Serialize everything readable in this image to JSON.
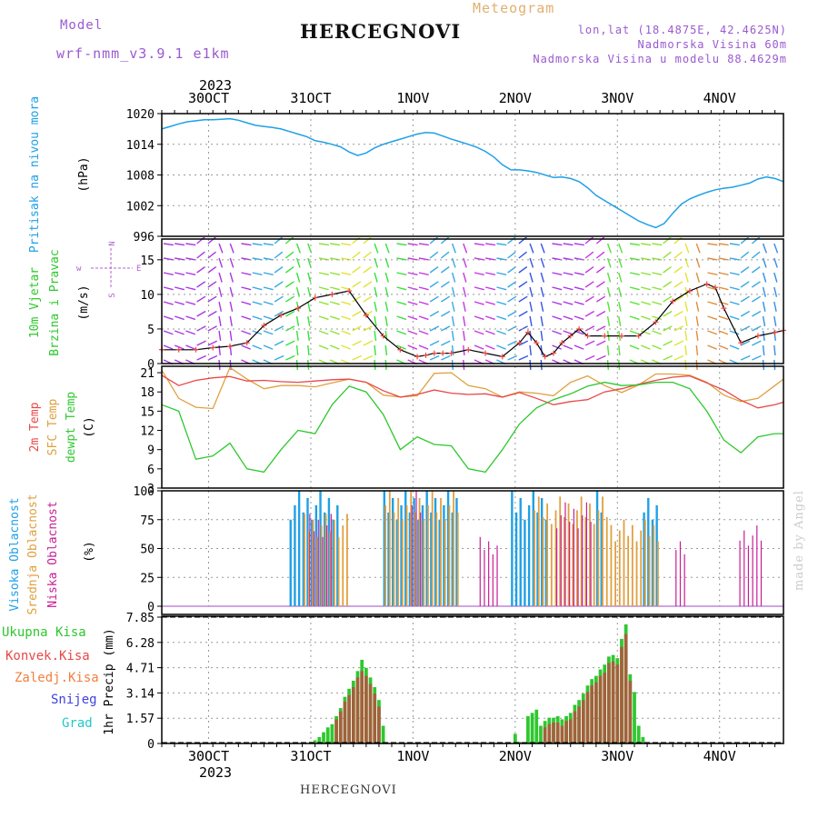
{
  "header": {
    "model_label": "Model",
    "model_name": "wrf-nmm_v3.9.1  e1km",
    "station_title": "HERCEGNOVI",
    "meteogram_label": "Meteogram",
    "lonlat": "lon,lat (18.4875E, 42.4625N)",
    "elevation": "Nadmorska Visina 60m",
    "model_elevation": "Nadmorska Visina u modelu 88.4629m"
  },
  "footer": {
    "station": "HERCEGNOVI",
    "credit": "made by Angel"
  },
  "time_axis": {
    "year": "2023",
    "days": [
      "30OCT",
      "31OCT",
      "1NOV",
      "2NOV",
      "3NOV",
      "4NOV"
    ],
    "start_hours_before_30oct": 11,
    "total_hours": 146
  },
  "colors": {
    "pressure": "#1fa0e6",
    "temp2m": "#e84848",
    "sfc_temp": "#e0a040",
    "dewpt": "#2ec82e",
    "high_cloud": "#1fa0e6",
    "mid_cloud": "#e0a040",
    "low_cloud": "#c81e96",
    "total_precip": "#2ec82e",
    "conv_precip": "#c84040",
    "frozen": "#f08040",
    "snow": "#4040e0",
    "grad": "#20c8c8",
    "wind_speed": "#e84848"
  },
  "panels": {
    "pressure": {
      "ylabel": "Pritisak na nivou mora",
      "unit": "(hPa)",
      "ticks": [
        "1020",
        "1014",
        "1008",
        "1002",
        "996"
      ]
    },
    "wind": {
      "ylabel1": "10m Vjetar",
      "ylabel2": "Brzina i Pravac",
      "unit": "(m/s)",
      "ticks": [
        "15",
        "10",
        "5",
        "0"
      ],
      "compass": {
        "n": "N",
        "w": "W",
        "e": "E",
        "s": "S",
        "wsym": "w",
        "esym": "E"
      }
    },
    "temp": {
      "ylabel1": "2m Temp",
      "ylabel2": "SFC Temp",
      "ylabel3": "dewpt Temp",
      "unit": "(C)",
      "ticks": [
        "21",
        "18",
        "15",
        "12",
        "9",
        "6",
        "3"
      ]
    },
    "cloud": {
      "ylabel1": "Visoka Oblacnost",
      "ylabel2": "Srednja Oblacnost",
      "ylabel3": "Niska Oblacnost",
      "unit": "(%)",
      "ticks": [
        "100",
        "75",
        "50",
        "25",
        "0"
      ]
    },
    "precip": {
      "legend": [
        "Ukupna Kisa",
        "Konvek.Kisa",
        "Zaledj.Kisa",
        "Snijeg",
        "Grad"
      ],
      "ylabel": "1hr Precip (mm)",
      "ticks": [
        "7.85",
        "6.28",
        "4.71",
        "3.14",
        "1.57",
        "0"
      ]
    }
  },
  "chart_data": [
    {
      "type": "line",
      "title": "Pritisak na nivou mora",
      "unit": "hPa",
      "x_hours": [
        0,
        2,
        4,
        6,
        8,
        10,
        12,
        14,
        16,
        18,
        20,
        22,
        24,
        26,
        28,
        30,
        32,
        34,
        36,
        38,
        40,
        42,
        44,
        46,
        48,
        50,
        52,
        54,
        56,
        58,
        60,
        62,
        64,
        66,
        68,
        70,
        72,
        74,
        76,
        78,
        80,
        82,
        84,
        86,
        88,
        90,
        92,
        94,
        96,
        98,
        100,
        102,
        104,
        106,
        108,
        110,
        112,
        114,
        116,
        118,
        120,
        122,
        124,
        126,
        128,
        130,
        132,
        134,
        136,
        138,
        140,
        142,
        144,
        146
      ],
      "values": [
        1017,
        1017.5,
        1018,
        1018.4,
        1018.6,
        1018.8,
        1018.8,
        1018.9,
        1019,
        1018.7,
        1018.2,
        1017.7,
        1017.5,
        1017.3,
        1017,
        1016.5,
        1016,
        1015.5,
        1014.7,
        1014.4,
        1014,
        1013.5,
        1012.5,
        1011.8,
        1012.3,
        1013.3,
        1014,
        1014.5,
        1015,
        1015.5,
        1016,
        1016.3,
        1016.2,
        1015.6,
        1015,
        1014.5,
        1014,
        1013.4,
        1012.6,
        1011.5,
        1010,
        1009,
        1009,
        1008.8,
        1008.5,
        1008,
        1007.5,
        1007.6,
        1007.3,
        1006.7,
        1005.5,
        1004,
        1003,
        1002,
        1001,
        1000,
        999,
        998.3,
        997.7,
        998.5,
        1000.5,
        1002.3,
        1003.3,
        1004,
        1004.6,
        1005.1,
        1005.4,
        1005.6,
        1006,
        1006.4,
        1007.2,
        1007.6,
        1007.3,
        1006.7
      ],
      "ylim": [
        996,
        1020
      ]
    },
    {
      "type": "line",
      "title": "10m Vjetar Brzina i Pravac",
      "unit": "m/s",
      "x_hours": [
        0,
        4,
        8,
        12,
        16,
        20,
        24,
        28,
        32,
        36,
        40,
        44,
        48,
        52,
        56,
        60,
        62,
        64,
        66,
        68,
        72,
        76,
        80,
        84,
        86,
        88,
        90,
        92,
        94,
        96,
        98,
        100,
        104,
        108,
        112,
        116,
        120,
        124,
        128,
        130,
        132,
        136,
        140,
        144,
        146
      ],
      "series": [
        {
          "values": [
            2,
            2,
            2,
            2.3,
            2.5,
            3,
            5.5,
            7,
            8,
            9.5,
            10,
            10.5,
            7,
            4,
            2,
            1,
            1.2,
            1.5,
            1.5,
            1.5,
            2,
            1.5,
            1,
            3,
            4.5,
            3,
            1,
            1.5,
            3,
            4,
            5,
            4,
            4,
            4,
            4,
            6,
            9,
            10.5,
            11.5,
            11,
            8,
            3,
            4,
            4.5,
            4.8
          ]
        }
      ],
      "ylim": [
        0,
        18
      ]
    },
    {
      "type": "line",
      "title": "Temperatures",
      "unit": "C",
      "x_hours": [
        0,
        4,
        8,
        12,
        16,
        20,
        24,
        28,
        32,
        36,
        40,
        44,
        48,
        52,
        56,
        60,
        64,
        68,
        72,
        76,
        80,
        84,
        88,
        92,
        96,
        100,
        104,
        108,
        112,
        116,
        120,
        124,
        128,
        132,
        136,
        140,
        144,
        146
      ],
      "series": [
        {
          "name": "2m Temp",
          "values": [
            20.6,
            19,
            19.8,
            20.2,
            20.4,
            19.7,
            19.8,
            19.6,
            19.5,
            19.7,
            19.9,
            20,
            19.5,
            18.2,
            17.2,
            17.6,
            18.3,
            17.8,
            17.6,
            17.7,
            17.2,
            17.9,
            17,
            16,
            16.5,
            16.8,
            18,
            18.5,
            19.2,
            19.8,
            20.3,
            20.5,
            19.4,
            18.3,
            16.7,
            15.5,
            16,
            16.4
          ]
        },
        {
          "name": "SFC Temp",
          "values": [
            21.4,
            17,
            15.6,
            15.4,
            21.8,
            20,
            18.5,
            19,
            19,
            18.8,
            19.4,
            20,
            19.5,
            17.5,
            17.2,
            17.4,
            20.9,
            21,
            19,
            18.5,
            17.2,
            18,
            17.8,
            17.4,
            19.5,
            20.5,
            19,
            17.9,
            19.1,
            20.8,
            20.8,
            20.6,
            19.5,
            17.5,
            16.5,
            17,
            19,
            20
          ]
        },
        {
          "name": "dewpt Temp",
          "values": [
            16,
            15,
            7.5,
            8,
            10,
            6,
            5.5,
            9,
            12,
            11.5,
            16,
            18.9,
            18,
            14.5,
            9,
            11,
            9.8,
            9.6,
            6,
            5.5,
            9,
            13,
            15.5,
            16.8,
            17.7,
            18.9,
            19.5,
            19,
            19.1,
            19.5,
            19.5,
            18.5,
            15,
            10.5,
            8.5,
            11,
            11.5,
            11.5
          ]
        }
      ],
      "ylim": [
        3,
        22
      ]
    },
    {
      "type": "bar",
      "title": "Oblacnost",
      "unit": "%",
      "series": [
        {
          "name": "Visoka Oblacnost",
          "segments": [
            [
              30,
              41,
              100
            ],
            [
              52,
              69,
              100
            ],
            [
              82,
              85,
              100
            ],
            [
              86,
              90,
              100
            ],
            [
              102,
              103,
              100
            ],
            [
              113,
              116,
              100
            ]
          ]
        },
        {
          "name": "Srednja Oblacnost",
          "segments": [
            [
              33,
              43,
              80
            ],
            [
              52,
              69,
              100
            ],
            [
              87,
              104,
              95
            ],
            [
              105,
              116,
              75
            ]
          ]
        },
        {
          "name": "Niska Oblacnost",
          "segments": [
            [
              34,
              39,
              80
            ],
            [
              58,
              60,
              100
            ],
            [
              74,
              78,
              60
            ],
            [
              92,
              100,
              90
            ],
            [
              120,
              122,
              60
            ],
            [
              135,
              140,
              70
            ]
          ]
        }
      ],
      "ylim": [
        0,
        100
      ]
    },
    {
      "type": "bar",
      "title": "1hr Precip",
      "unit": "mm",
      "series": [
        {
          "name": "Ukupna Kisa",
          "x_hours": [
            35,
            36,
            37,
            38,
            39,
            40,
            41,
            42,
            43,
            44,
            45,
            46,
            47,
            48,
            49,
            50,
            51,
            52,
            83,
            84,
            86,
            87,
            88,
            89,
            90,
            91,
            92,
            93,
            94,
            95,
            96,
            97,
            98,
            99,
            100,
            101,
            102,
            103,
            104,
            105,
            106,
            107,
            108,
            109,
            110,
            111,
            112,
            113
          ],
          "values": [
            0.1,
            0.2,
            0.4,
            0.7,
            1,
            1.2,
            1.7,
            2.2,
            2.9,
            3.4,
            3.9,
            4.5,
            5.2,
            4.7,
            4.1,
            3.5,
            2.7,
            1.1,
            0.6,
            0.1,
            1.7,
            1.9,
            2.1,
            1.1,
            1.4,
            1.6,
            1.6,
            1.7,
            1.5,
            1.7,
            1.9,
            2.4,
            2.7,
            3.1,
            3.6,
            4,
            4.2,
            4.6,
            4.9,
            5.4,
            5.5,
            5.3,
            6.5,
            7.4,
            4.3,
            3.2,
            1.1,
            0.4
          ]
        },
        {
          "name": "Konvek.Kisa",
          "x_hours": [
            41,
            42,
            43,
            44,
            45,
            46,
            47,
            48,
            49,
            50,
            51,
            90,
            91,
            92,
            93,
            94,
            95,
            96,
            97,
            98,
            99,
            100,
            101,
            102,
            103,
            104,
            105,
            106,
            107,
            108,
            109,
            110
          ],
          "values": [
            1.5,
            2,
            2.6,
            3,
            3.5,
            4.1,
            4.5,
            4.2,
            3.7,
            3.1,
            2.3,
            1,
            1.2,
            1.3,
            1.3,
            1.1,
            1.4,
            1.5,
            2,
            2.3,
            2.7,
            3.2,
            3.6,
            3.8,
            4.2,
            4.4,
            5,
            5.1,
            4.9,
            6,
            6.8,
            3.9
          ]
        }
      ],
      "ylim": [
        0,
        7.85
      ]
    }
  ]
}
